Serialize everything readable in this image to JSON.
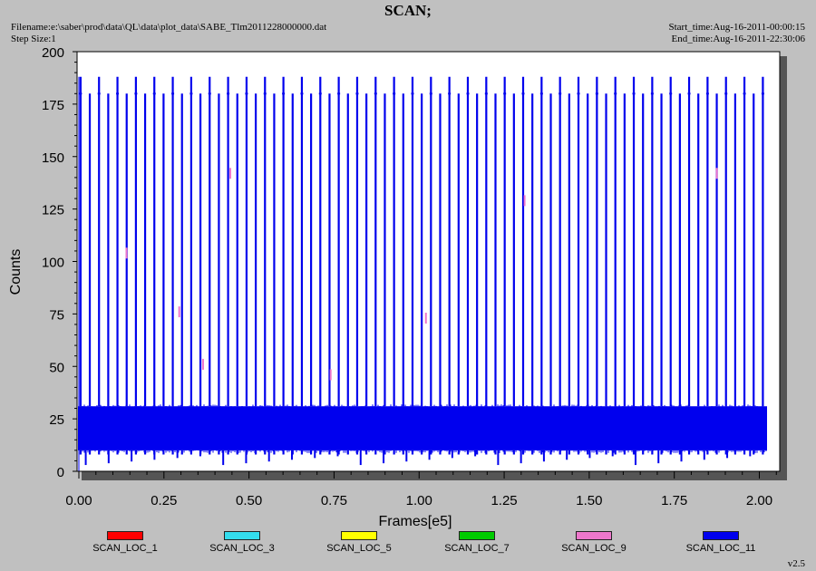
{
  "header": {
    "title": "SCAN;",
    "filename": "Filename:e:\\saber\\prod\\data\\QL\\data\\plot_data\\SABE_Tlm2011228000000.dat",
    "step_size": "Step Size:1",
    "start_time": "Start_time:Aug-16-2011-00:00:15",
    "end_time": "End_time:Aug-16-2011-22:30:06"
  },
  "chart_data": {
    "type": "line",
    "title": "SCAN;",
    "xlabel": "Frames[e5]",
    "ylabel": "Counts",
    "xlim": [
      0,
      2.15
    ],
    "ylim": [
      0,
      200
    ],
    "x_ticks": [
      "0.00",
      "0.25",
      "0.50",
      "0.75",
      "1.00",
      "1.25",
      "1.50",
      "1.75",
      "2.00"
    ],
    "x_tick_values": [
      0,
      0.25,
      0.5,
      0.75,
      1.0,
      1.25,
      1.5,
      1.75,
      2.0
    ],
    "y_ticks": [
      "0",
      "25",
      "50",
      "75",
      "100",
      "125",
      "150",
      "175",
      "200"
    ],
    "y_tick_values": [
      0,
      25,
      50,
      75,
      100,
      125,
      150,
      175,
      200
    ],
    "grid": false,
    "legend_position": "bottom",
    "series": [
      {
        "name": "SCAN_LOC_1",
        "color": "#ff0000",
        "description": "not visible (hidden under SCAN_LOC_11)"
      },
      {
        "name": "SCAN_LOC_3",
        "color": "#33ddee"
      },
      {
        "name": "SCAN_LOC_5",
        "color": "#ffff00"
      },
      {
        "name": "SCAN_LOC_7",
        "color": "#00cc00"
      },
      {
        "name": "SCAN_LOC_9",
        "color": "#ee77cc"
      },
      {
        "name": "SCAN_LOC_11",
        "color": "#0000ee",
        "x_range": [
          0.0,
          2.02
        ],
        "baseline_band": [
          10,
          31
        ],
        "spike_count": 75,
        "spike_peak": 180,
        "spike_tall_peak": 188,
        "low_dips": [
          3,
          8
        ],
        "spike_x_first": 0.005,
        "spike_x_step": 0.0271
      }
    ],
    "annotations": [
      {
        "x": 0.14,
        "y": 104,
        "color": "#ee77cc"
      },
      {
        "x": 0.295,
        "y": 76,
        "color": "#ee77cc"
      },
      {
        "x": 0.365,
        "y": 51,
        "color": "#ee77cc"
      },
      {
        "x": 0.445,
        "y": 142,
        "color": "#ee77cc"
      },
      {
        "x": 0.74,
        "y": 46,
        "color": "#ee77cc"
      },
      {
        "x": 1.02,
        "y": 73,
        "color": "#ee77cc"
      },
      {
        "x": 1.31,
        "y": 129,
        "color": "#ee77cc"
      },
      {
        "x": 1.875,
        "y": 142,
        "color": "#ee77cc"
      }
    ]
  },
  "legend": [
    {
      "label": "SCAN_LOC_1",
      "color": "#ff0000"
    },
    {
      "label": "SCAN_LOC_3",
      "color": "#33ddee"
    },
    {
      "label": "SCAN_LOC_5",
      "color": "#ffff00"
    },
    {
      "label": "SCAN_LOC_7",
      "color": "#00cc00"
    },
    {
      "label": "SCAN_LOC_9",
      "color": "#ee77cc"
    },
    {
      "label": "SCAN_LOC_11",
      "color": "#0000ee"
    }
  ],
  "version": "v2.5"
}
